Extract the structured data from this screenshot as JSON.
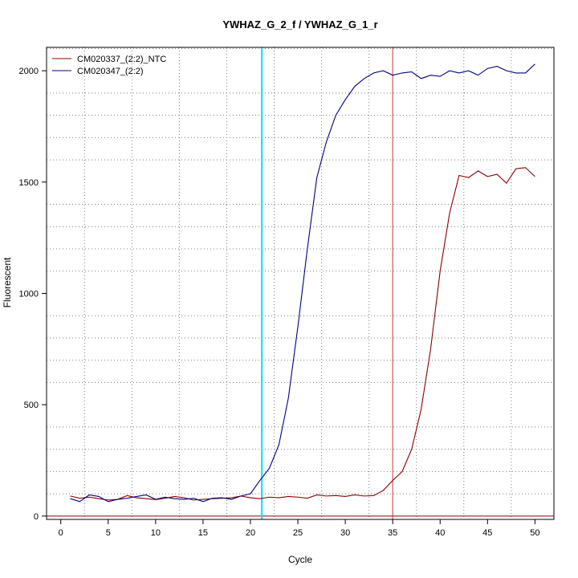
{
  "chart_data": {
    "type": "line",
    "title": "YWHAZ_G_2_f / YWHAZ_G_1_r",
    "xlabel": "Cycle",
    "ylabel": "Fluorescent",
    "xlim": [
      -1.5,
      52
    ],
    "ylim": [
      -15,
      2105
    ],
    "xticks": [
      0,
      5,
      10,
      15,
      20,
      25,
      30,
      35,
      40,
      45,
      50
    ],
    "yticks": [
      0,
      500,
      1000,
      1500,
      2000
    ],
    "grid": true,
    "legend_position": "top-left",
    "threshold_line": {
      "cycle": 21.2,
      "color": "#00e5ee"
    },
    "marker_line": {
      "cycle": 35,
      "color": "#cd3333"
    },
    "baseline": {
      "value": 0,
      "color": "#8b0000"
    },
    "series": [
      {
        "name": "CM020337_(2:2)_NTC",
        "color": "#8b0000",
        "x": [
          1,
          2,
          3,
          4,
          5,
          6,
          7,
          8,
          9,
          10,
          11,
          12,
          13,
          14,
          15,
          16,
          17,
          18,
          19,
          20,
          21,
          22,
          23,
          24,
          25,
          26,
          27,
          28,
          29,
          30,
          31,
          32,
          33,
          34,
          35,
          36,
          37,
          38,
          39,
          40,
          41,
          42,
          43,
          44,
          45,
          46,
          47,
          48,
          49,
          50
        ],
        "y": [
          90,
          80,
          85,
          78,
          72,
          75,
          92,
          82,
          78,
          74,
          80,
          88,
          82,
          72,
          75,
          78,
          80,
          82,
          90,
          82,
          78,
          85,
          82,
          88,
          85,
          80,
          95,
          90,
          92,
          88,
          95,
          90,
          92,
          115,
          160,
          200,
          300,
          480,
          750,
          1100,
          1360,
          1530,
          1520,
          1550,
          1525,
          1535,
          1495,
          1560,
          1565,
          1525
        ]
      },
      {
        "name": "CM020347_(2:2)",
        "color": "#000080",
        "x": [
          1,
          2,
          3,
          4,
          5,
          6,
          7,
          8,
          9,
          10,
          11,
          12,
          13,
          14,
          15,
          16,
          17,
          18,
          19,
          20,
          21,
          22,
          23,
          24,
          25,
          26,
          27,
          28,
          29,
          30,
          31,
          32,
          33,
          34,
          35,
          36,
          37,
          38,
          39,
          40,
          41,
          42,
          43,
          44,
          45,
          46,
          47,
          48,
          49,
          50
        ],
        "y": [
          78,
          65,
          95,
          88,
          65,
          75,
          80,
          88,
          95,
          75,
          85,
          78,
          75,
          80,
          65,
          80,
          82,
          75,
          90,
          100,
          160,
          215,
          320,
          530,
          850,
          1200,
          1520,
          1680,
          1800,
          1870,
          1930,
          1965,
          1990,
          2000,
          1980,
          1990,
          1995,
          1965,
          1980,
          1975,
          2000,
          1990,
          2000,
          1980,
          2010,
          2020,
          2000,
          1990,
          1990,
          2030
        ]
      }
    ]
  }
}
